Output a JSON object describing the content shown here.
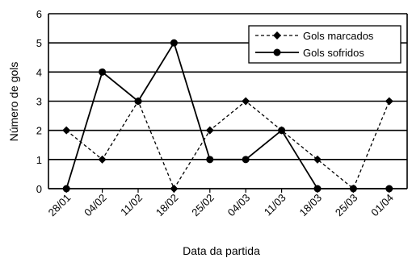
{
  "chart_data": {
    "type": "line",
    "xlabel": "Data da partida",
    "ylabel": "Número de gols",
    "categories": [
      "28/01",
      "04/02",
      "11/02",
      "18/02",
      "25/02",
      "04/03",
      "11/03",
      "18/03",
      "25/03",
      "01/04"
    ],
    "ylim": [
      0,
      6
    ],
    "yticks": [
      0,
      1,
      2,
      3,
      4,
      5,
      6
    ],
    "grid": "horizontal",
    "legend_position": "top-right",
    "series": [
      {
        "name": "Gols marcados",
        "values": [
          2,
          1,
          3,
          0,
          2,
          3,
          2,
          1,
          0,
          3
        ],
        "line_style": "dashed",
        "marker": "diamond"
      },
      {
        "name": "Gols sofridos",
        "values": [
          0,
          4,
          3,
          5,
          1,
          1,
          2,
          0,
          0,
          0
        ],
        "line_style": "solid",
        "marker": "circle"
      }
    ]
  }
}
